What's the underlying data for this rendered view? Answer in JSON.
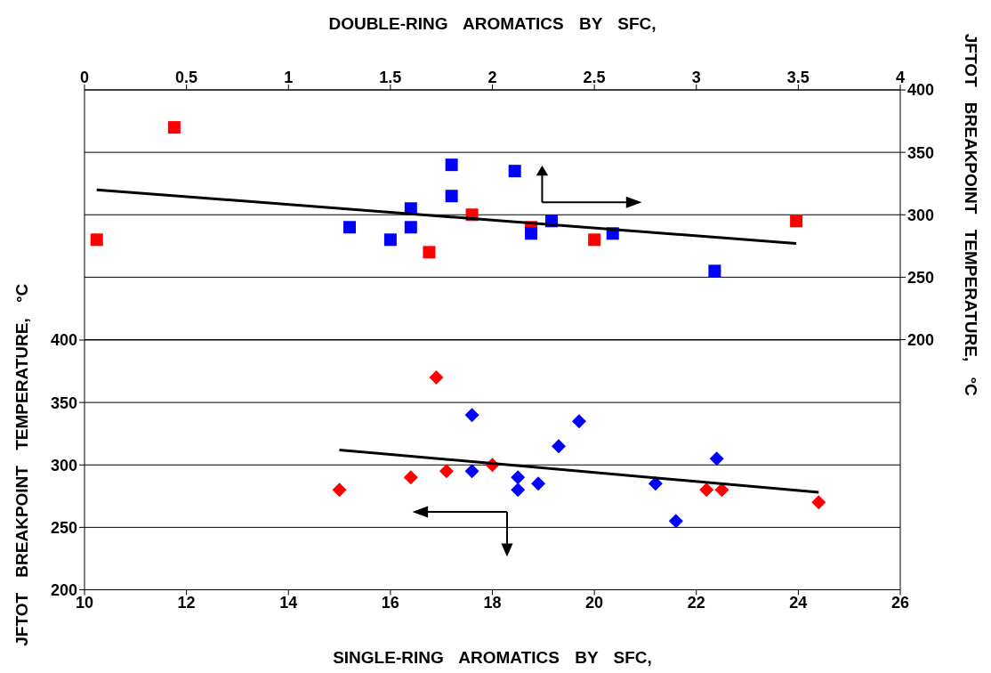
{
  "chart_data": [
    {
      "type": "scatter",
      "xlabel": "DOUBLE-RING AROMATICS BY SFC,",
      "ylabel": "JFTOT BREAKPOINT TEMPERATURE, °C",
      "xlim": [
        0,
        4
      ],
      "xticks": [
        0,
        0.5,
        1,
        1.5,
        2,
        2.5,
        3,
        3.5,
        4
      ],
      "ylim": [
        200,
        400
      ],
      "yticks": [
        200,
        250,
        300,
        350,
        400
      ],
      "grid": "y",
      "series": [
        {
          "type": "scatter",
          "marker": "square",
          "color": "#ff0000",
          "x": [
            0.06,
            0.44,
            1.69,
            1.9,
            2.19,
            2.5,
            3.49
          ],
          "values": [
            280,
            370,
            270,
            300,
            290,
            280,
            295
          ]
        },
        {
          "type": "scatter",
          "marker": "square",
          "color": "#0000ff",
          "x": [
            1.3,
            1.5,
            1.6,
            1.6,
            1.8,
            1.8,
            2.11,
            2.19,
            2.29,
            2.59,
            3.09
          ],
          "values": [
            290,
            280,
            305,
            290,
            340,
            315,
            335,
            285,
            295,
            285,
            255
          ]
        },
        {
          "type": "line",
          "marker": "none",
          "color": "#000000",
          "x": [
            0.06,
            3.49
          ],
          "values": [
            320,
            277
          ]
        }
      ]
    },
    {
      "type": "scatter",
      "xlabel": "SINGLE-RING AROMATICS BY SFC,",
      "ylabel": "JFTOT BREAKPOINT TEMPERATURE, °C",
      "xlim": [
        10,
        26
      ],
      "xticks": [
        10,
        12,
        14,
        16,
        18,
        20,
        22,
        24,
        26
      ],
      "ylim": [
        200,
        400
      ],
      "yticks": [
        200,
        250,
        300,
        350,
        400
      ],
      "grid": "y",
      "series": [
        {
          "type": "scatter",
          "marker": "diamond",
          "color": "#ff0000",
          "x": [
            15.0,
            16.4,
            16.9,
            17.1,
            18.0,
            22.2,
            22.5,
            24.4
          ],
          "values": [
            280,
            290,
            370,
            295,
            300,
            280,
            280,
            270
          ]
        },
        {
          "type": "scatter",
          "marker": "diamond",
          "color": "#0000ff",
          "x": [
            17.6,
            17.6,
            18.5,
            18.5,
            18.9,
            19.3,
            19.7,
            21.2,
            21.6,
            22.4
          ],
          "values": [
            340,
            295,
            290,
            280,
            285,
            315,
            335,
            285,
            255,
            305
          ]
        },
        {
          "type": "line",
          "marker": "none",
          "color": "#000000",
          "x": [
            15.0,
            24.4
          ],
          "values": [
            312,
            278
          ]
        }
      ]
    }
  ]
}
